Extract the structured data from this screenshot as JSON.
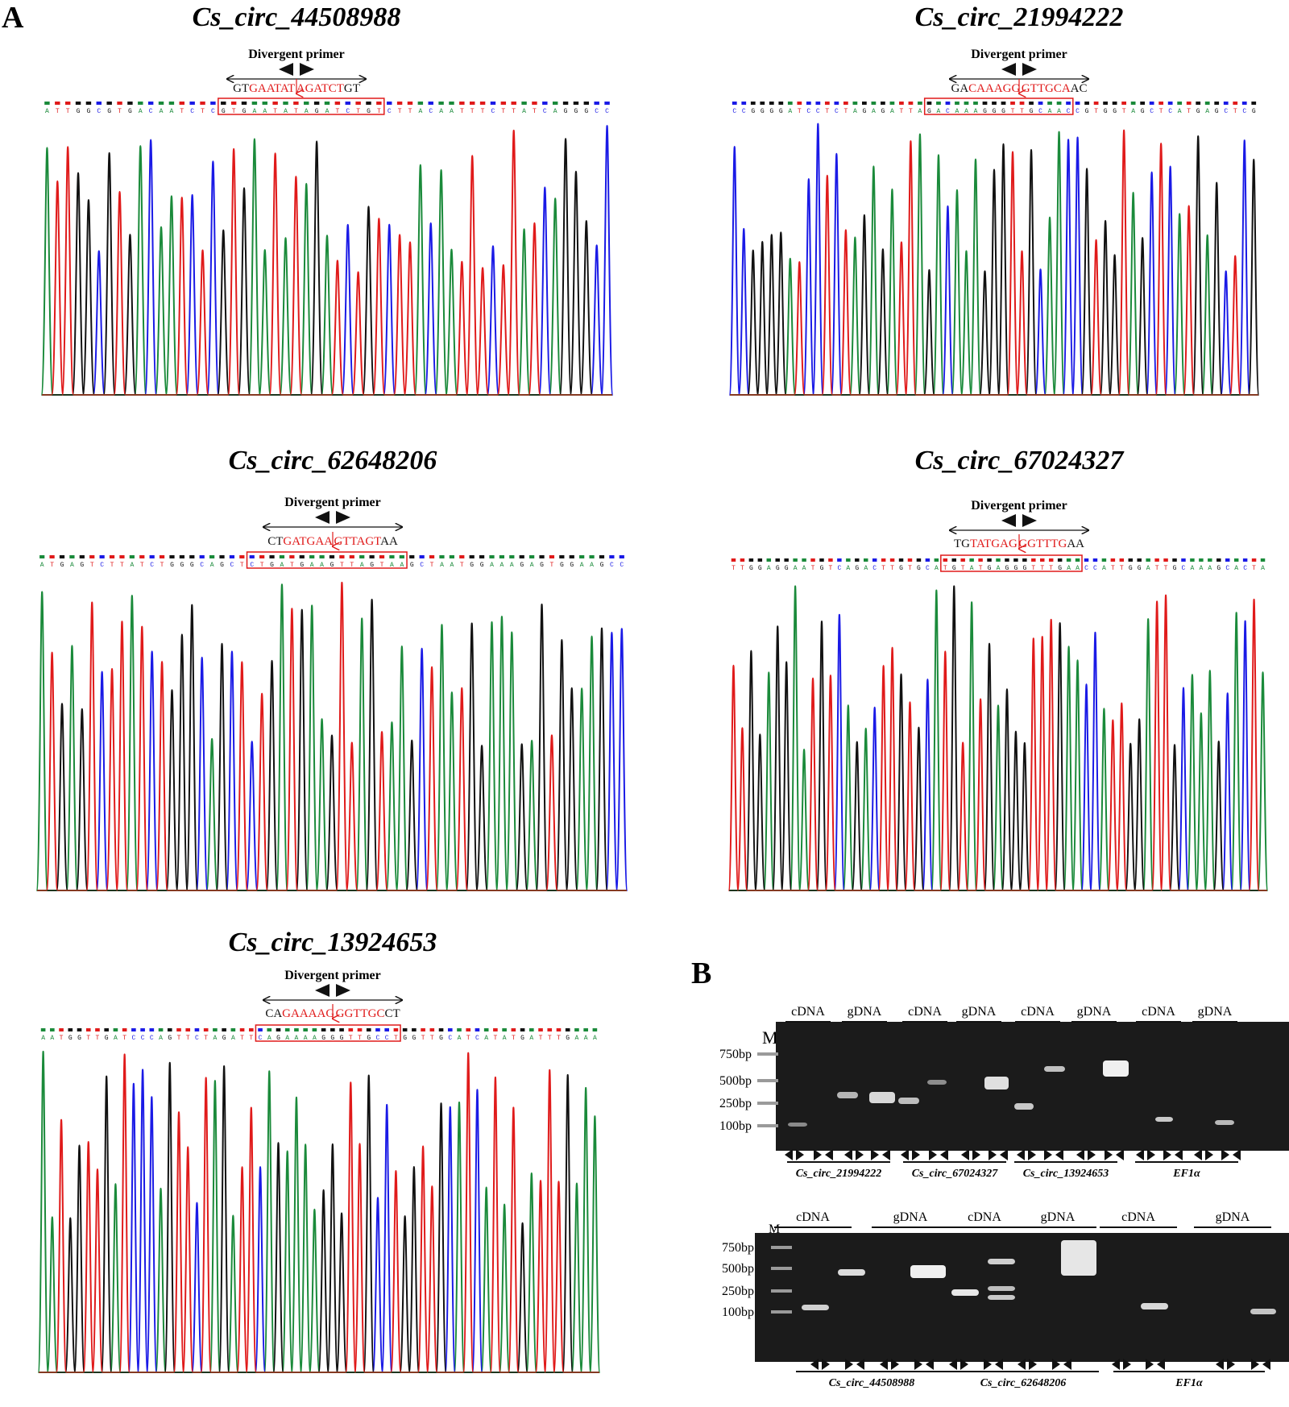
{
  "panel_labels": {
    "a": "A",
    "b": "B"
  },
  "primer_label": "Divergent primer",
  "colors": {
    "A": "#1a8a3a",
    "C": "#1a1ae6",
    "G": "#111111",
    "T": "#e01a1a",
    "highlight": "#e01a1a"
  },
  "chromatograms": [
    {
      "id": "c1",
      "title": "Cs_circ_44508988",
      "junction_left": "GT",
      "junction_red_left": "GAATAT",
      "junction_red_right": "AGATCT",
      "junction_right": "GT",
      "base_calls": "ATTGGCGTGACAATCTCGTGAATATAGATCTGTCTTACAATTTCTTATCAGGGCC"
    },
    {
      "id": "c2",
      "title": "Cs_circ_21994222",
      "junction_left": "GA",
      "junction_red_left": "CAAAGG",
      "junction_red_right": "GTTGCA",
      "junction_right": "AC",
      "base_calls": "CCGGGGATCCTCTAGAGATTAGACAAAGGGTTGCAACCGTGGTAGCTCATGAGCTCG"
    },
    {
      "id": "c3",
      "title": "Cs_circ_62648206",
      "junction_left": "CT",
      "junction_red_left": "GATGAA",
      "junction_red_right": "GTTAGT",
      "junction_right": "AA",
      "base_calls": "ATGAGTCTTATCTGGGCAGCTCTGATGAAGTTAGTAAGCTAATGGAAAGAGTGGAAGCC"
    },
    {
      "id": "c4",
      "title": "Cs_circ_67024327",
      "junction_left": "TG",
      "junction_red_left": "TATGAG",
      "junction_red_right": "GGTTTG",
      "junction_right": "AA",
      "base_calls": "TTGGAGGAATGTCAGACTTGTGCATGTATGAGGGTTTGAACCATTGGATTGCAAAGCACTA"
    },
    {
      "id": "c5",
      "title": "Cs_circ_13924653",
      "junction_left": "CA",
      "junction_red_left": "GAAAAG",
      "junction_red_right": "GGTTGC",
      "junction_right": "CT",
      "base_calls": "AATGGTTGATCCCAGTTCTAGATTCAGAAAAGGGTTGCCTGGTTGCATCATATGATTTGAAA"
    }
  ],
  "gel1": {
    "marker_label": "M",
    "lane_labels": [
      "cDNA",
      "gDNA",
      "cDNA",
      "gDNA",
      "cDNA",
      "gDNA",
      "cDNA",
      "gDNA"
    ],
    "ladder": [
      "750bp",
      "500bp",
      "250bp",
      "100bp"
    ],
    "genes": [
      "Cs_circ_21994222",
      "Cs_circ_67024327",
      "Cs_circ_13924653",
      "EF1α"
    ]
  },
  "gel2": {
    "marker_label": "M",
    "lane_labels": [
      "cDNA",
      "gDNA",
      "cDNA",
      "gDNA",
      "cDNA",
      "gDNA"
    ],
    "ladder": [
      "750bp",
      "500bp",
      "250bp",
      "100bp"
    ],
    "genes": [
      "Cs_circ_44508988",
      "Cs_circ_62648206",
      "EF1α"
    ]
  }
}
